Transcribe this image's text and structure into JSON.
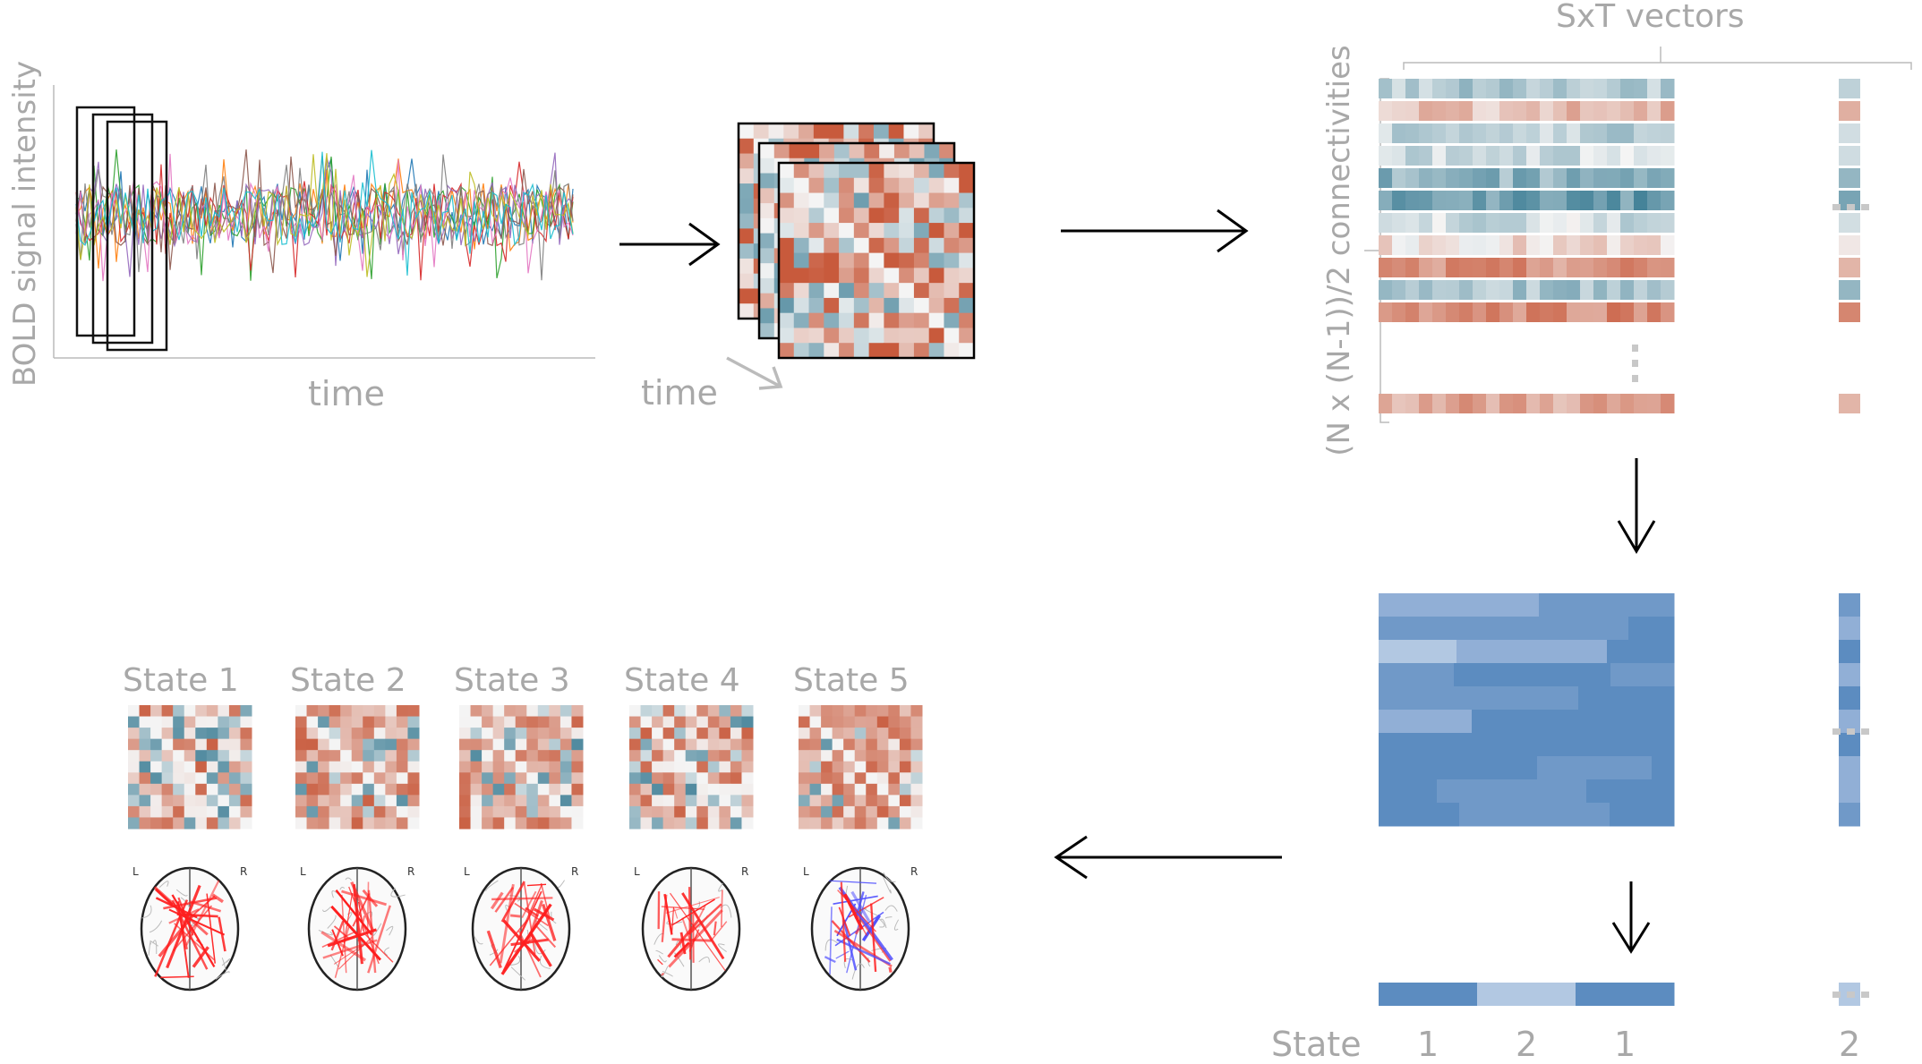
{
  "labels": {
    "y_axis": "BOLD signal intensity",
    "x_axis": "time",
    "stack_time": "time",
    "vectors_header": "SxT vectors",
    "connectivities": "(N x (N-1))/2 connectivities",
    "state_row_label": "State"
  },
  "states": [
    {
      "title": "State 1",
      "mix": 0.45,
      "lateral": [
        "L",
        "R"
      ]
    },
    {
      "title": "State 2",
      "mix": 0.72,
      "lateral": [
        "L",
        "R"
      ]
    },
    {
      "title": "State 3",
      "mix": 0.66,
      "lateral": [
        "L",
        "R"
      ]
    },
    {
      "title": "State 4",
      "mix": 0.5,
      "lateral": [
        "L",
        "R"
      ]
    },
    {
      "title": "State 5",
      "mix": 0.76,
      "lateral": [
        "L",
        "R"
      ]
    }
  ],
  "state_sequence": [
    {
      "label": "1",
      "level": "dark"
    },
    {
      "label": "2",
      "level": "light"
    },
    {
      "label": "1",
      "level": "dark"
    }
  ],
  "extra_state": {
    "label": "2",
    "level": "light"
  },
  "ellipsis": "...",
  "colors": {
    "red": "#c85a3c",
    "blue": "#3f7f96",
    "cluster_dark": "#5c8cc0",
    "cluster_light": "#b2c8e2",
    "text_gray": "#a8a8a8",
    "brain_red": "#ff1e1e",
    "brain_blue": "#5050ff"
  }
}
